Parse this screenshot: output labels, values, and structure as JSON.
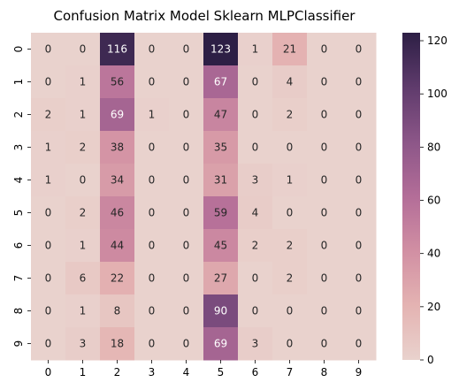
{
  "chart_data": {
    "type": "heatmap",
    "title": "Confusion Matrix Model Sklearn MLPClassifier",
    "xlabel": "",
    "ylabel": "",
    "x_categories": [
      "0",
      "1",
      "2",
      "3",
      "4",
      "5",
      "6",
      "7",
      "8",
      "9"
    ],
    "y_categories": [
      "0",
      "1",
      "2",
      "3",
      "4",
      "5",
      "6",
      "7",
      "8",
      "9"
    ],
    "values": [
      [
        0,
        0,
        116,
        0,
        0,
        123,
        1,
        21,
        0,
        0
      ],
      [
        0,
        1,
        56,
        0,
        0,
        67,
        0,
        4,
        0,
        0
      ],
      [
        2,
        1,
        69,
        1,
        0,
        47,
        0,
        2,
        0,
        0
      ],
      [
        1,
        2,
        38,
        0,
        0,
        35,
        0,
        0,
        0,
        0
      ],
      [
        1,
        0,
        34,
        0,
        0,
        31,
        3,
        1,
        0,
        0
      ],
      [
        0,
        2,
        46,
        0,
        0,
        59,
        4,
        0,
        0,
        0
      ],
      [
        0,
        1,
        44,
        0,
        0,
        45,
        2,
        2,
        0,
        0
      ],
      [
        0,
        6,
        22,
        0,
        0,
        27,
        0,
        2,
        0,
        0
      ],
      [
        0,
        1,
        8,
        0,
        0,
        90,
        0,
        0,
        0,
        0
      ],
      [
        0,
        3,
        18,
        0,
        0,
        69,
        3,
        0,
        0,
        0
      ]
    ],
    "colorbar": {
      "min": 0,
      "max": 123,
      "ticks": [
        0,
        20,
        40,
        60,
        80,
        100,
        120
      ],
      "colors": [
        "#e9d2cd",
        "#e4b3b2",
        "#d18fa3",
        "#b36d98",
        "#8c5688",
        "#5f3b6c",
        "#2d1f45"
      ]
    },
    "grid": false,
    "legend": "colorbar-right"
  }
}
